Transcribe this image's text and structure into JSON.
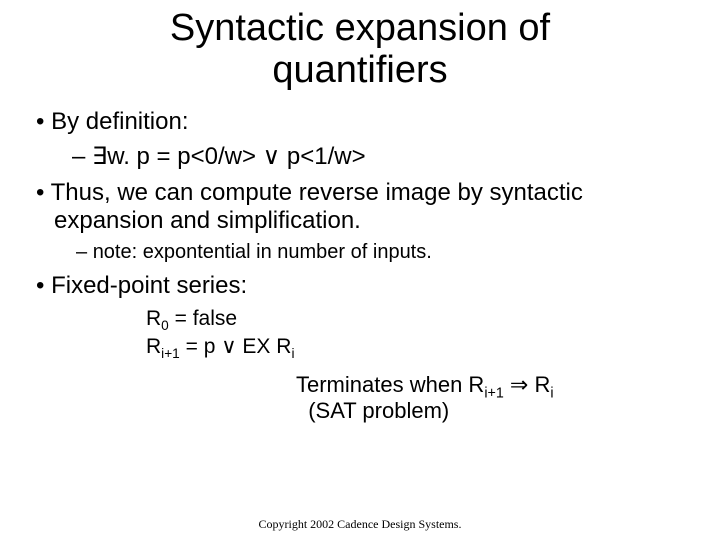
{
  "title_line1": "Syntactic expansion of",
  "title_line2": "quantifiers",
  "bullets": {
    "b1": "By definition:",
    "b1_sub_prefix": "– ",
    "b1_sub_exists": "∃",
    "b1_sub_text1": "w. p = p<0/w> ",
    "b1_sub_or": "∨",
    "b1_sub_text2": " p<1/w>",
    "b2": "Thus, we can compute reverse image by syntactic expansion and simplification.",
    "b2_note": "note: expontential in number of inputs.",
    "b3": " Fixed-point series:"
  },
  "formulas": {
    "r0_lhs": "R",
    "r0_sub": "0",
    "r0_rhs": " = false",
    "ri_lhs": "R",
    "ri_sub": "i+1",
    "ri_mid": " = p ",
    "ri_or": "∨",
    "ri_rhs": " EX R",
    "ri_rhs_sub": "i"
  },
  "term": {
    "t1a": "Terminates when R",
    "t1_sub1": "i+1",
    "t1_imp": " ⇒ ",
    "t1b": "R",
    "t1_sub2": "i",
    "t2": "  (SAT problem)"
  },
  "copyright": "Copyright 2002 Cadence Design Systems.",
  "colors": {
    "bg": "#ffffff",
    "text": "#000000"
  },
  "fonts": {
    "body": "Comic Sans MS",
    "copyright": "Times New Roman",
    "title_size": 38,
    "body_size": 24,
    "note_size": 20,
    "formula_size": 21,
    "term_size": 22,
    "copyright_size": 12
  }
}
